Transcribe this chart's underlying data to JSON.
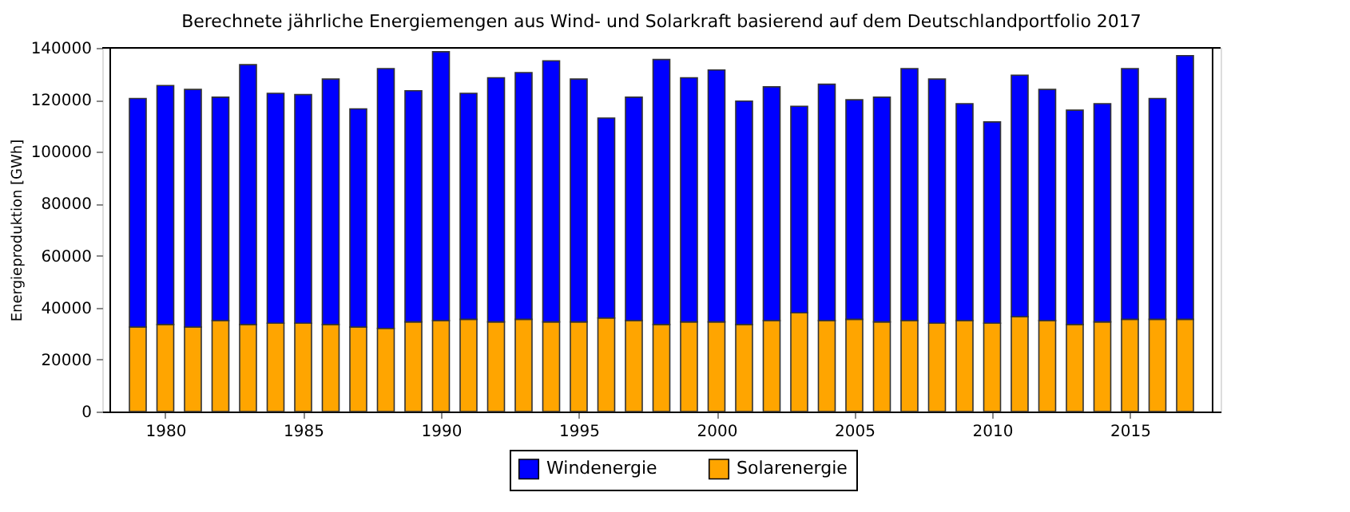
{
  "chart_data": {
    "type": "bar",
    "title": "Berechnete jährliche Energiemengen aus Wind- und Solarkraft basierend auf dem Deutschlandportfolio 2017",
    "ylabel": "Energieproduktion [GWh]",
    "x": [
      1979,
      1980,
      1981,
      1982,
      1983,
      1984,
      1985,
      1986,
      1987,
      1988,
      1989,
      1990,
      1991,
      1992,
      1993,
      1994,
      1995,
      1996,
      1997,
      1998,
      1999,
      2000,
      2001,
      2002,
      2003,
      2004,
      2005,
      2006,
      2007,
      2008,
      2009,
      2010,
      2011,
      2012,
      2013,
      2014,
      2015,
      2016,
      2017
    ],
    "stacked": true,
    "series": [
      {
        "name": "Solarenergie",
        "color": "#ffa500",
        "values": [
          32500,
          33500,
          32500,
          35000,
          33500,
          34000,
          34000,
          33500,
          32500,
          32000,
          34500,
          35000,
          35500,
          34500,
          35500,
          34500,
          34500,
          36000,
          35000,
          33500,
          34500,
          34500,
          33500,
          35000,
          38000,
          35000,
          35500,
          34500,
          35000,
          34000,
          35000,
          34000,
          36500,
          35000,
          33500,
          34500,
          35500,
          35500,
          35500
        ]
      },
      {
        "name": "Windenergie",
        "color": "#0000ff",
        "values": [
          88000,
          92000,
          91500,
          86000,
          100000,
          88500,
          88000,
          94500,
          84000,
          100000,
          89000,
          103500,
          87000,
          94000,
          95000,
          100500,
          93500,
          77000,
          86000,
          102000,
          94000,
          97000,
          86000,
          90000,
          79500,
          91000,
          84500,
          86500,
          97000,
          94000,
          83500,
          77500,
          93000,
          89000,
          82500,
          84000,
          96500,
          85000,
          101500
        ]
      }
    ],
    "xlim": [
      1978,
      2018
    ],
    "xticks": [
      1980,
      1985,
      1990,
      1995,
      2000,
      2005,
      2010,
      2015
    ],
    "ylim": [
      0,
      140000
    ],
    "yticks": [
      0,
      20000,
      40000,
      60000,
      80000,
      100000,
      120000,
      140000
    ],
    "grid": false,
    "legend": "bottom"
  }
}
